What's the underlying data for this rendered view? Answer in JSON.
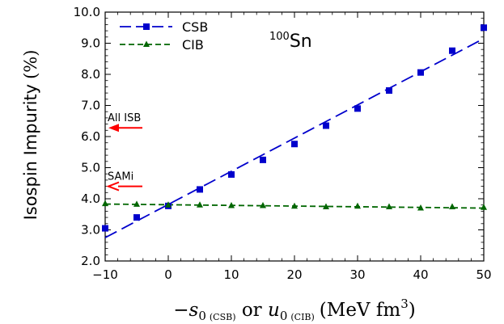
{
  "chart_data": {
    "type": "line",
    "annotation": {
      "nucleus_mass": "100",
      "nucleus_symbol": "Sn"
    },
    "ylabel": {
      "text": "Isospin Impurity",
      "unit": "(%)"
    },
    "xlabel": {
      "part1": "−s",
      "sub1": "0",
      "tag1": "(CSB)",
      "mid": " or ",
      "part2": "u",
      "sub2": "0",
      "tag2": "(CIB)",
      "unit": "(MeV fm",
      "sup": "3",
      "close": ")"
    },
    "xlim": [
      -10,
      50
    ],
    "ylim": [
      2.0,
      10.0
    ],
    "xticks": [
      -10,
      0,
      10,
      20,
      30,
      40,
      50
    ],
    "xtick_labels": [
      "−10",
      "0",
      "10",
      "20",
      "30",
      "40",
      "50"
    ],
    "yticks": [
      2.0,
      3.0,
      4.0,
      5.0,
      6.0,
      7.0,
      8.0,
      9.0,
      10.0
    ],
    "ytick_labels": [
      "2.0",
      "3.0",
      "4.0",
      "5.0",
      "6.0",
      "7.0",
      "8.0",
      "9.0",
      "10.0"
    ],
    "grid": false,
    "legend_position": "top-left",
    "series": [
      {
        "name": "CSB",
        "color": "#0000cc",
        "marker": "square",
        "line_style": "dashed",
        "x": [
          -10,
          -5,
          0,
          5,
          10,
          15,
          20,
          25,
          30,
          35,
          40,
          45,
          50
        ],
        "y": [
          3.05,
          3.4,
          3.77,
          4.3,
          4.78,
          5.25,
          5.76,
          6.35,
          6.9,
          7.48,
          8.06,
          8.76,
          9.5
        ],
        "fit": {
          "x": [
            -10,
            50
          ],
          "y": [
            2.75,
            9.15
          ]
        }
      },
      {
        "name": "CIB",
        "color": "#006600",
        "marker": "triangle",
        "line_style": "dashed",
        "x": [
          -10,
          -5,
          0,
          5,
          10,
          15,
          20,
          25,
          30,
          35,
          40,
          45,
          50
        ],
        "y": [
          3.84,
          3.82,
          3.8,
          3.8,
          3.78,
          3.78,
          3.76,
          3.74,
          3.76,
          3.74,
          3.7,
          3.74,
          3.72
        ],
        "fit": {
          "x": [
            -10,
            50
          ],
          "y": [
            3.83,
            3.7
          ]
        }
      }
    ],
    "arrows": [
      {
        "label": "All ISB",
        "y": 6.28,
        "color": "#ff0000",
        "style": "filled"
      },
      {
        "label": "SAMi",
        "y": 4.4,
        "color": "#ff0000",
        "style": "open"
      }
    ]
  }
}
